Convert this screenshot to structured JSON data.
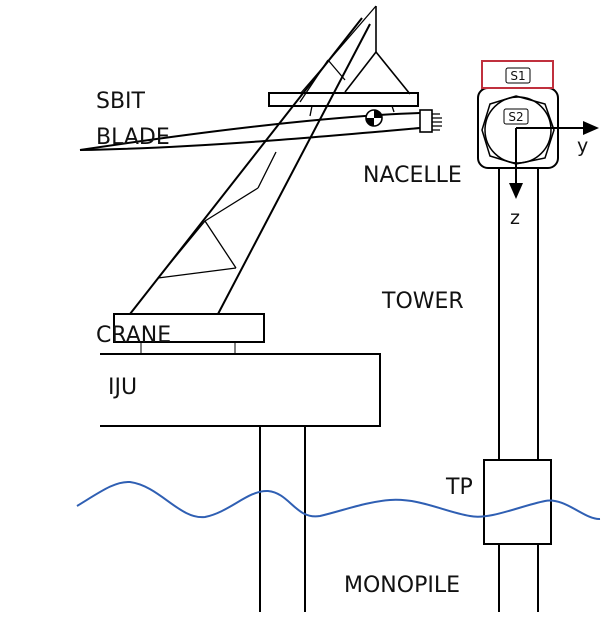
{
  "labels": {
    "sbit": "SBIT",
    "blade": "BLADE",
    "nacelle": "NACELLE",
    "tower": "TOWER",
    "crane": "CRANE",
    "iju": "IJU",
    "tp": "TP",
    "monopile": "MONOPILE"
  },
  "sensors": {
    "s1": "S1",
    "s2": "S2"
  },
  "axes": {
    "y": "y",
    "z": "z"
  },
  "colors": {
    "water": "#2f5fb3",
    "sensor_box": "#c0303d",
    "lines": "#000000"
  }
}
